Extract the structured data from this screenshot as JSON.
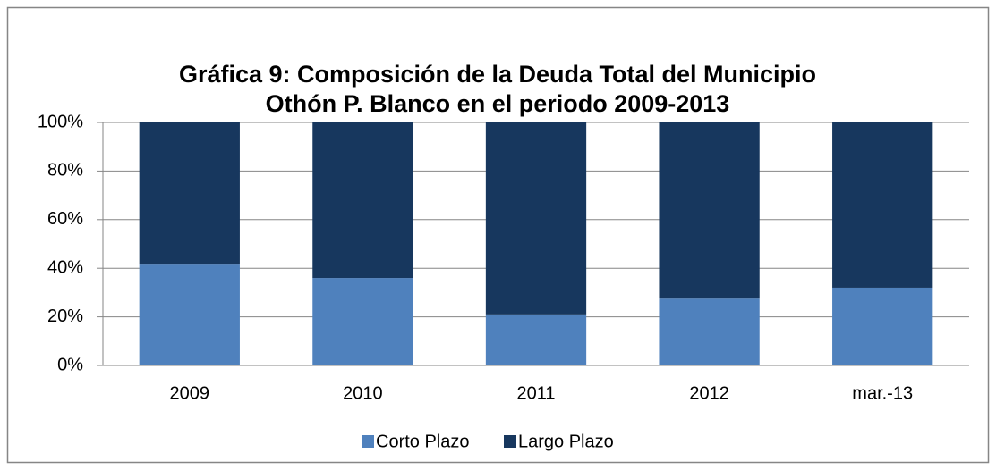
{
  "chart_data": {
    "type": "stacked_bar",
    "title": [
      "Gráfica 9: Composición de la Deuda Total del Municipio",
      "Othón P. Blanco en el periodo 2009-2013"
    ],
    "categories": [
      "2009",
      "2010",
      "2011",
      "2012",
      "mar.-13"
    ],
    "series": [
      {
        "name": "Corto Plazo",
        "color": "#4f81bd",
        "values": [
          41.5,
          36,
          21,
          27.5,
          32
        ]
      },
      {
        "name": "Largo Plazo",
        "color": "#17375e",
        "values": [
          58.5,
          64,
          79,
          72.5,
          68
        ]
      }
    ],
    "ylim": [
      0,
      100
    ],
    "yticks": [
      {
        "value": 0,
        "label": "0%"
      },
      {
        "value": 20,
        "label": "20%"
      },
      {
        "value": 40,
        "label": "40%"
      },
      {
        "value": 60,
        "label": "60%"
      },
      {
        "value": 80,
        "label": "80%"
      },
      {
        "value": 100,
        "label": "100%"
      }
    ],
    "grid": true,
    "legend": "bottom"
  }
}
